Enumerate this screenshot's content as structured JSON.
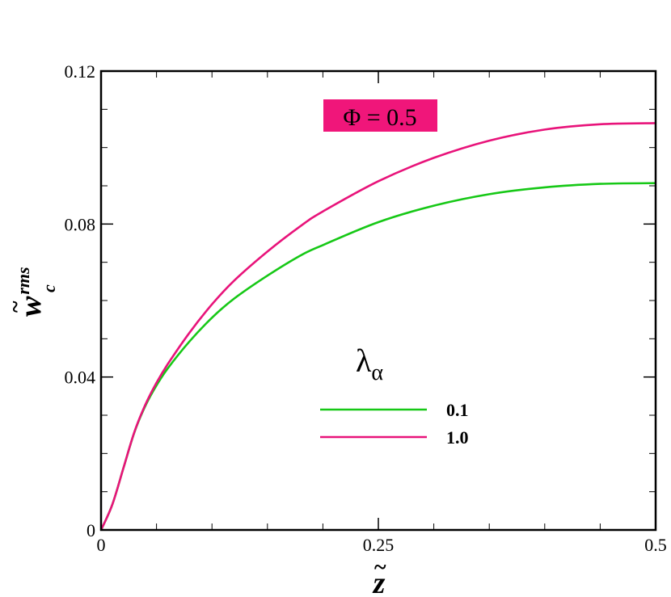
{
  "chart_data": {
    "type": "line",
    "title": "",
    "xlim": [
      0,
      0.5
    ],
    "ylim": [
      0,
      0.12
    ],
    "x_ticks": [
      {
        "value": 0,
        "label": "0"
      },
      {
        "value": 0.25,
        "label": "0.25"
      },
      {
        "value": 0.5,
        "label": "0.5"
      }
    ],
    "y_ticks": [
      {
        "value": 0,
        "label": "0"
      },
      {
        "value": 0.04,
        "label": "0.04"
      },
      {
        "value": 0.08,
        "label": "0.08"
      },
      {
        "value": 0.12,
        "label": "0.12"
      }
    ],
    "x_minor_step": 0.05,
    "y_minor_step": 0.01,
    "xlabel": {
      "base": "z",
      "accent": "~"
    },
    "ylabel": {
      "base": "w",
      "accent": "~",
      "subscript": "c",
      "superscript": "rms"
    },
    "grid": false,
    "legend": {
      "placement": "lower-right",
      "title_base": "λ",
      "title_subscript": "α"
    },
    "annotation": {
      "text": "Φ = 0.5",
      "background": "#f0167a",
      "placement": "top-center"
    },
    "series": [
      {
        "name": "0.1",
        "color": "#16c816",
        "x": [
          0,
          0.01,
          0.02,
          0.03,
          0.04,
          0.05,
          0.06,
          0.08,
          0.1,
          0.12,
          0.15,
          0.18,
          0.2,
          0.25,
          0.3,
          0.35,
          0.4,
          0.45,
          0.5
        ],
        "y": [
          0,
          0.0065,
          0.016,
          0.0255,
          0.0325,
          0.0378,
          0.0422,
          0.0494,
          0.0555,
          0.0605,
          0.0665,
          0.0718,
          0.0745,
          0.0805,
          0.0848,
          0.0878,
          0.0896,
          0.0905,
          0.0907
        ]
      },
      {
        "name": "1.0",
        "color": "#e8137a",
        "x": [
          0,
          0.01,
          0.02,
          0.03,
          0.04,
          0.05,
          0.06,
          0.08,
          0.1,
          0.12,
          0.15,
          0.18,
          0.2,
          0.25,
          0.3,
          0.35,
          0.4,
          0.45,
          0.5
        ],
        "y": [
          0,
          0.0065,
          0.016,
          0.0256,
          0.0328,
          0.0385,
          0.0433,
          0.0517,
          0.059,
          0.0652,
          0.0728,
          0.0795,
          0.0833,
          0.0912,
          0.0973,
          0.1018,
          0.1047,
          0.1061,
          0.1064
        ]
      }
    ]
  }
}
